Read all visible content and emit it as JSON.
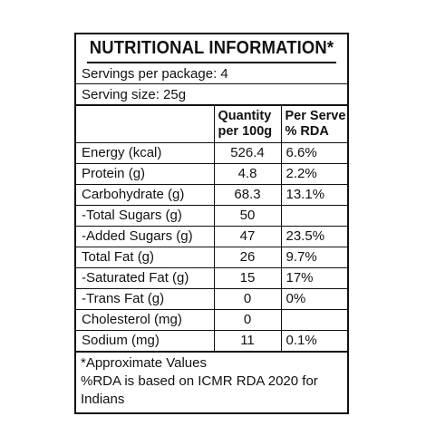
{
  "title": "NUTRITIONAL INFORMATION*",
  "servings_per_package": "Servings per package: 4",
  "serving_size": "Serving size: 25g",
  "headers": {
    "nutrient": "",
    "quantity_line1": "Quantity",
    "quantity_line2": "per 100g",
    "rda_line1": "Per Serve",
    "rda_line2": "% RDA"
  },
  "rows": [
    {
      "name": "Energy (kcal)",
      "quantity": "526.4",
      "rda": "6.6%"
    },
    {
      "name": "Protein (g)",
      "quantity": "4.8",
      "rda": "2.2%"
    },
    {
      "name": "Carbohydrate (g)",
      "quantity": "68.3",
      "rda": "13.1%"
    },
    {
      "name": "-Total Sugars (g)",
      "quantity": "50",
      "rda": ""
    },
    {
      "name": "-Added Sugars (g)",
      "quantity": "47",
      "rda": "23.5%"
    },
    {
      "name": "Total Fat (g)",
      "quantity": "26",
      "rda": "9.7%"
    },
    {
      "name": "-Saturated Fat (g)",
      "quantity": "15",
      "rda": "17%"
    },
    {
      "name": "-Trans Fat (g)",
      "quantity": "0",
      "rda": "0%"
    },
    {
      "name": "Cholesterol (mg)",
      "quantity": "0",
      "rda": ""
    },
    {
      "name": "Sodium (mg)",
      "quantity": "11",
      "rda": "0.1%"
    }
  ],
  "footer": {
    "line1": "*Approximate Values",
    "line2": "%RDA is based on ICMR RDA 2020 for Indians"
  }
}
